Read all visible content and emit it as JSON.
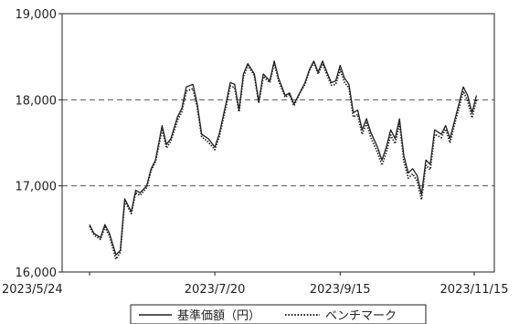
{
  "chart_data": {
    "type": "line",
    "title": "",
    "xlabel": "",
    "ylabel": "",
    "ylim": [
      16000,
      19000
    ],
    "y_ticks": [
      16000,
      17000,
      18000,
      19000
    ],
    "y_tick_labels": [
      "16,000",
      "17,000",
      "18,000",
      "19,000"
    ],
    "x_ticks": [
      "2023-05-24",
      "2023-07-20",
      "2023-09-15",
      "2023-11-15"
    ],
    "x_tick_labels": [
      "2023/5/24",
      "2023/7/20",
      "2023/9/15",
      "2023/11/15"
    ],
    "grid": "dashed horizontal at 17,000 and 18,000",
    "legend_position": "bottom-center",
    "series": [
      {
        "name": "基準価額（円）",
        "style": "solid",
        "color": "#222222",
        "points": [
          [
            "2023-05-24",
            16550
          ],
          [
            "2023-05-26",
            16450
          ],
          [
            "2023-05-29",
            16400
          ],
          [
            "2023-05-31",
            16550
          ],
          [
            "2023-06-02",
            16450
          ],
          [
            "2023-06-05",
            16200
          ],
          [
            "2023-06-07",
            16250
          ],
          [
            "2023-06-09",
            16850
          ],
          [
            "2023-06-12",
            16700
          ],
          [
            "2023-06-14",
            16950
          ],
          [
            "2023-06-16",
            16920
          ],
          [
            "2023-06-19",
            17000
          ],
          [
            "2023-06-21",
            17200
          ],
          [
            "2023-06-23",
            17300
          ],
          [
            "2023-06-26",
            17700
          ],
          [
            "2023-06-28",
            17480
          ],
          [
            "2023-06-30",
            17550
          ],
          [
            "2023-07-03",
            17800
          ],
          [
            "2023-07-05",
            17900
          ],
          [
            "2023-07-07",
            18150
          ],
          [
            "2023-07-10",
            18180
          ],
          [
            "2023-07-12",
            17950
          ],
          [
            "2023-07-14",
            17600
          ],
          [
            "2023-07-17",
            17550
          ],
          [
            "2023-07-20",
            17450
          ],
          [
            "2023-07-22",
            17600
          ],
          [
            "2023-07-25",
            17950
          ],
          [
            "2023-07-27",
            18200
          ],
          [
            "2023-07-29",
            18180
          ],
          [
            "2023-07-31",
            17880
          ],
          [
            "2023-08-02",
            18300
          ],
          [
            "2023-08-04",
            18420
          ],
          [
            "2023-08-07",
            18300
          ],
          [
            "2023-08-09",
            17980
          ],
          [
            "2023-08-11",
            18300
          ],
          [
            "2023-08-14",
            18220
          ],
          [
            "2023-08-16",
            18450
          ],
          [
            "2023-08-18",
            18250
          ],
          [
            "2023-08-21",
            18050
          ],
          [
            "2023-08-23",
            18080
          ],
          [
            "2023-08-25",
            17950
          ],
          [
            "2023-08-28",
            18100
          ],
          [
            "2023-08-30",
            18200
          ],
          [
            "2023-09-01",
            18350
          ],
          [
            "2023-09-03",
            18450
          ],
          [
            "2023-09-05",
            18320
          ],
          [
            "2023-09-07",
            18450
          ],
          [
            "2023-09-09",
            18320
          ],
          [
            "2023-09-11",
            18200
          ],
          [
            "2023-09-13",
            18220
          ],
          [
            "2023-09-15",
            18400
          ],
          [
            "2023-09-17",
            18250
          ],
          [
            "2023-09-19",
            18180
          ],
          [
            "2023-09-21",
            17850
          ],
          [
            "2023-09-23",
            17880
          ],
          [
            "2023-09-25",
            17650
          ],
          [
            "2023-09-27",
            17780
          ],
          [
            "2023-09-29",
            17620
          ],
          [
            "2023-10-02",
            17450
          ],
          [
            "2023-10-04",
            17300
          ],
          [
            "2023-10-06",
            17450
          ],
          [
            "2023-10-08",
            17650
          ],
          [
            "2023-10-10",
            17550
          ],
          [
            "2023-10-12",
            17780
          ],
          [
            "2023-10-14",
            17350
          ],
          [
            "2023-10-16",
            17150
          ],
          [
            "2023-10-18",
            17200
          ],
          [
            "2023-10-20",
            17120
          ],
          [
            "2023-10-22",
            16900
          ],
          [
            "2023-10-24",
            17300
          ],
          [
            "2023-10-26",
            17250
          ],
          [
            "2023-10-28",
            17650
          ],
          [
            "2023-10-31",
            17600
          ],
          [
            "2023-11-02",
            17700
          ],
          [
            "2023-11-04",
            17550
          ],
          [
            "2023-11-06",
            17750
          ],
          [
            "2023-11-08",
            17950
          ],
          [
            "2023-11-10",
            18150
          ],
          [
            "2023-11-12",
            18050
          ],
          [
            "2023-11-14",
            17850
          ],
          [
            "2023-11-16",
            18050
          ]
        ]
      },
      {
        "name": "ベンチマーク",
        "style": "dotted",
        "color": "#222222",
        "points": [
          [
            "2023-05-24",
            16530
          ],
          [
            "2023-05-26",
            16430
          ],
          [
            "2023-05-29",
            16380
          ],
          [
            "2023-05-31",
            16520
          ],
          [
            "2023-06-02",
            16420
          ],
          [
            "2023-06-05",
            16150
          ],
          [
            "2023-06-07",
            16230
          ],
          [
            "2023-06-09",
            16820
          ],
          [
            "2023-06-12",
            16680
          ],
          [
            "2023-06-14",
            16920
          ],
          [
            "2023-06-16",
            16890
          ],
          [
            "2023-06-19",
            16980
          ],
          [
            "2023-06-21",
            17180
          ],
          [
            "2023-06-23",
            17280
          ],
          [
            "2023-06-26",
            17660
          ],
          [
            "2023-06-28",
            17440
          ],
          [
            "2023-06-30",
            17520
          ],
          [
            "2023-07-03",
            17760
          ],
          [
            "2023-07-05",
            17860
          ],
          [
            "2023-07-07",
            18100
          ],
          [
            "2023-07-10",
            18130
          ],
          [
            "2023-07-12",
            17910
          ],
          [
            "2023-07-14",
            17570
          ],
          [
            "2023-07-17",
            17510
          ],
          [
            "2023-07-20",
            17420
          ],
          [
            "2023-07-22",
            17570
          ],
          [
            "2023-07-25",
            17910
          ],
          [
            "2023-07-27",
            18160
          ],
          [
            "2023-07-29",
            18140
          ],
          [
            "2023-07-31",
            17860
          ],
          [
            "2023-08-02",
            18270
          ],
          [
            "2023-08-04",
            18400
          ],
          [
            "2023-08-07",
            18280
          ],
          [
            "2023-08-09",
            17960
          ],
          [
            "2023-08-11",
            18270
          ],
          [
            "2023-08-14",
            18200
          ],
          [
            "2023-08-16",
            18430
          ],
          [
            "2023-08-18",
            18220
          ],
          [
            "2023-08-21",
            18030
          ],
          [
            "2023-08-23",
            18060
          ],
          [
            "2023-08-25",
            17930
          ],
          [
            "2023-08-28",
            18090
          ],
          [
            "2023-08-30",
            18180
          ],
          [
            "2023-09-01",
            18340
          ],
          [
            "2023-09-03",
            18430
          ],
          [
            "2023-09-05",
            18300
          ],
          [
            "2023-09-07",
            18420
          ],
          [
            "2023-09-09",
            18290
          ],
          [
            "2023-09-11",
            18170
          ],
          [
            "2023-09-13",
            18180
          ],
          [
            "2023-09-15",
            18350
          ],
          [
            "2023-09-17",
            18200
          ],
          [
            "2023-09-19",
            18140
          ],
          [
            "2023-09-21",
            17800
          ],
          [
            "2023-09-23",
            17830
          ],
          [
            "2023-09-25",
            17600
          ],
          [
            "2023-09-27",
            17730
          ],
          [
            "2023-09-29",
            17560
          ],
          [
            "2023-10-02",
            17390
          ],
          [
            "2023-10-04",
            17240
          ],
          [
            "2023-10-06",
            17390
          ],
          [
            "2023-10-08",
            17590
          ],
          [
            "2023-10-10",
            17490
          ],
          [
            "2023-10-12",
            17720
          ],
          [
            "2023-10-14",
            17290
          ],
          [
            "2023-10-16",
            17090
          ],
          [
            "2023-10-18",
            17140
          ],
          [
            "2023-10-20",
            17060
          ],
          [
            "2023-10-22",
            16840
          ],
          [
            "2023-10-24",
            17240
          ],
          [
            "2023-10-26",
            17190
          ],
          [
            "2023-10-28",
            17600
          ],
          [
            "2023-10-31",
            17560
          ],
          [
            "2023-11-02",
            17660
          ],
          [
            "2023-11-04",
            17500
          ],
          [
            "2023-11-06",
            17710
          ],
          [
            "2023-11-08",
            17900
          ],
          [
            "2023-11-10",
            18100
          ],
          [
            "2023-11-12",
            17990
          ],
          [
            "2023-11-14",
            17790
          ],
          [
            "2023-11-16",
            18000
          ]
        ]
      }
    ]
  },
  "legend": {
    "items": [
      {
        "label": "基準価額（円）",
        "style": "solid"
      },
      {
        "label": "ベンチマーク",
        "style": "dotted"
      }
    ]
  }
}
